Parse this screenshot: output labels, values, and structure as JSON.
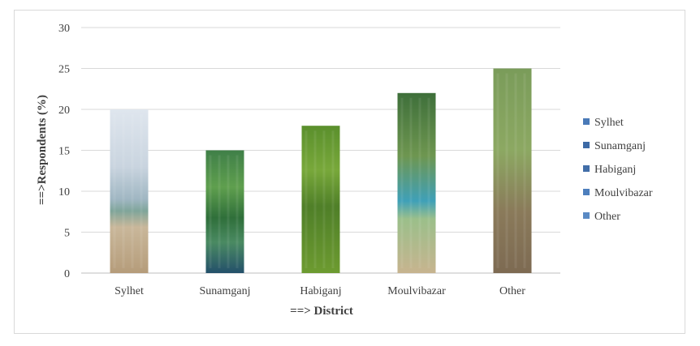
{
  "chart_data": {
    "type": "bar",
    "categories": [
      "Sylhet",
      "Sunamganj",
      "Habiganj",
      "Moulvibazar",
      "Other"
    ],
    "values": [
      20,
      15,
      18,
      22,
      25
    ],
    "xlabel": "==> District",
    "ylabel": "==>Respondents (%)",
    "ylim": [
      0,
      30
    ],
    "yticks": [
      0,
      5,
      10,
      15,
      20,
      25,
      30
    ],
    "grid": true,
    "legend": {
      "placement": "right",
      "entries": [
        "Sylhet",
        "Sunamganj",
        "Habiganj",
        "Moulvibazar",
        "Other"
      ]
    },
    "colors": {
      "Sylhet": "#4a7ab8",
      "Sunamganj": "#3d6aa6",
      "Habiganj": "#426ea8",
      "Moulvibazar": "#4d7fbd",
      "Other": "#5a8ac4",
      "grid": "#d9d9d9",
      "axis": "#bfbfbf",
      "text": "#404040"
    }
  }
}
